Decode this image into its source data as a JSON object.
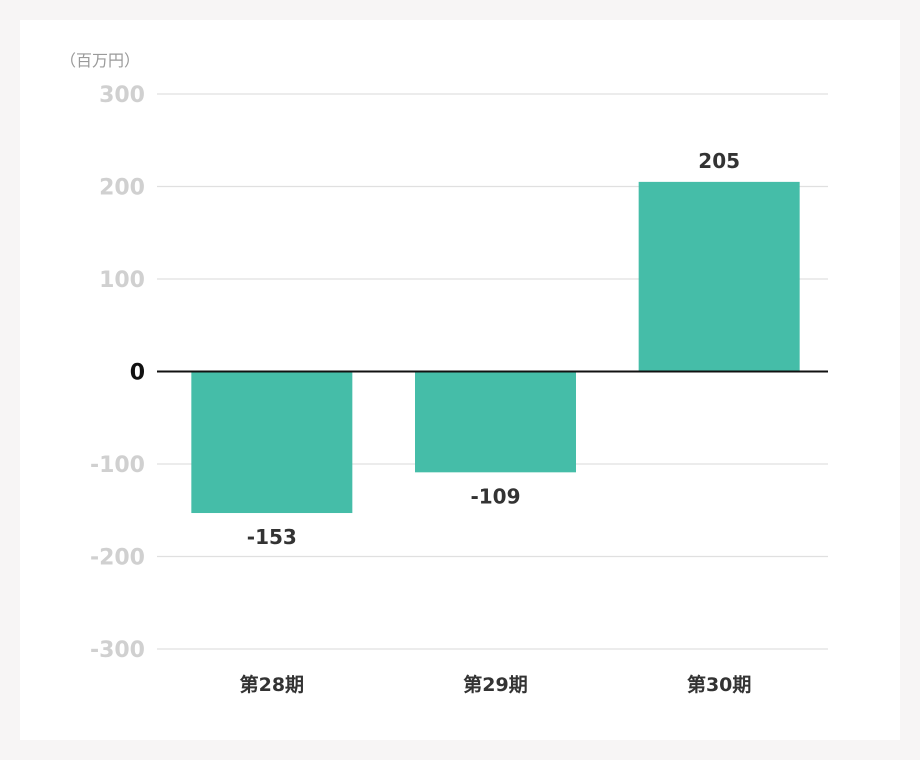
{
  "chart_data": {
    "type": "bar",
    "unit_label": "（百万円）",
    "categories": [
      "第28期",
      "第29期",
      "第30期"
    ],
    "values": [
      -153,
      -109,
      205
    ],
    "ylim": [
      -300,
      300
    ],
    "yticks": [
      300,
      200,
      100,
      0,
      -100,
      -200,
      -300
    ],
    "grid": true,
    "colors": {
      "bar": "#45bda8",
      "grid": "#e0e0e0",
      "zero_line": "#111111",
      "tick_text": "#d0d0d0",
      "label_text": "#333333"
    }
  }
}
